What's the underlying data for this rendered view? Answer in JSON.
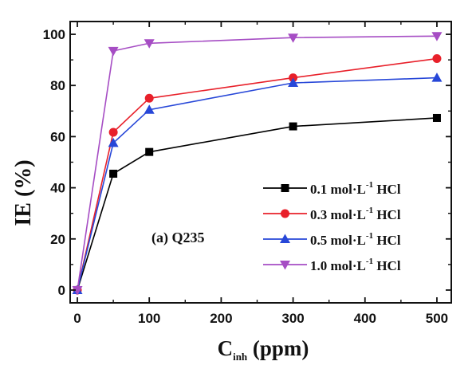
{
  "chart_data": {
    "type": "line",
    "title": "",
    "xlabel": {
      "main": "C",
      "sub": "inh",
      "rest": " (ppm)"
    },
    "ylabel": "IE (%)",
    "xlim": [
      -10,
      520
    ],
    "ylim": [
      -5,
      105
    ],
    "xticks": [
      0,
      100,
      200,
      300,
      400,
      500
    ],
    "yticks": [
      0,
      20,
      40,
      60,
      80,
      100
    ],
    "x": [
      0,
      50,
      100,
      300,
      500
    ],
    "series": [
      {
        "name": "0.1 mol·L⁻¹ HCl",
        "legend": {
          "pre": "0.1 mol·L",
          "sup": "-1",
          "post": " HCl"
        },
        "color": "#000000",
        "marker": "square",
        "values": [
          0,
          45.5,
          54,
          64,
          67.3
        ]
      },
      {
        "name": "0.3 mol·L⁻¹ HCl",
        "legend": {
          "pre": "0.3 mol·L",
          "sup": "-1",
          "post": " HCl"
        },
        "color": "#e8202a",
        "marker": "circle",
        "values": [
          0,
          61.7,
          75,
          83,
          90.5
        ]
      },
      {
        "name": "0.5 mol·L⁻¹ HCl",
        "legend": {
          "pre": "0.5 mol·L",
          "sup": "-1",
          "post": " HCl"
        },
        "color": "#2747d8",
        "marker": "triangle-up",
        "values": [
          0,
          57.5,
          70.5,
          81,
          83
        ]
      },
      {
        "name": "1.0 mol·L⁻¹ HCl",
        "legend": {
          "pre": "1.0 mol·L",
          "sup": "-1",
          "post": " HCl"
        },
        "color": "#a64dc4",
        "marker": "triangle-down",
        "values": [
          0,
          93.5,
          96.5,
          98.7,
          99.3
        ]
      }
    ],
    "annotation": "(a) Q235",
    "grid": false,
    "legend_position": "bottom-right"
  }
}
